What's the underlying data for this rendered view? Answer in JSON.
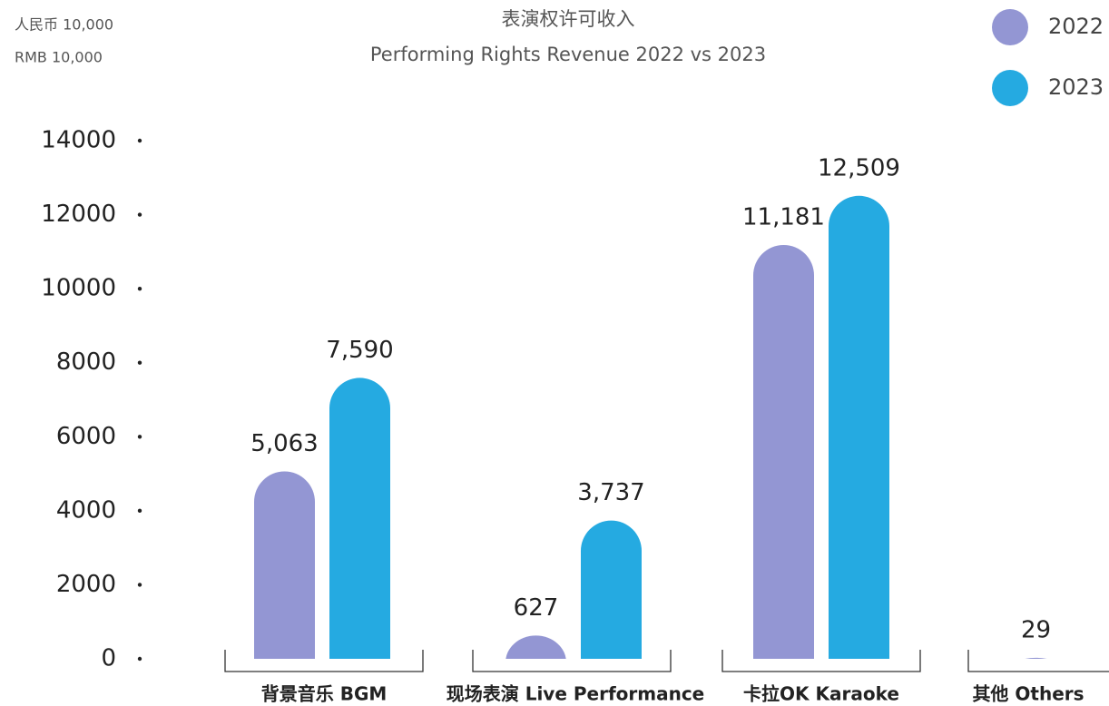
{
  "chart_data": {
    "type": "bar",
    "unit_label": [
      "人民币 10,000",
      "RMB 10,000"
    ],
    "title": "表演权许可收入",
    "subtitle": "Performing Rights Revenue 2022 vs 2023",
    "categories": [
      "背景音乐  BGM",
      "现场表演  Live Performance",
      "卡拉OK  Karaoke",
      "其他 Others"
    ],
    "series": [
      {
        "name": "2022",
        "color": "#9396d3",
        "values": [
          5063,
          627,
          11181,
          29
        ],
        "value_labels": [
          "5,063",
          "627",
          "11,181",
          "29"
        ]
      },
      {
        "name": "2023",
        "color": "#25aae1",
        "values": [
          7590,
          3737,
          12509,
          null
        ],
        "value_labels": [
          "7,590",
          "3,737",
          "12,509",
          null
        ]
      }
    ],
    "ylim": [
      0,
      14000
    ],
    "yticks": [
      0,
      2000,
      4000,
      6000,
      8000,
      10000,
      12000,
      14000
    ],
    "legend": "top-right"
  }
}
